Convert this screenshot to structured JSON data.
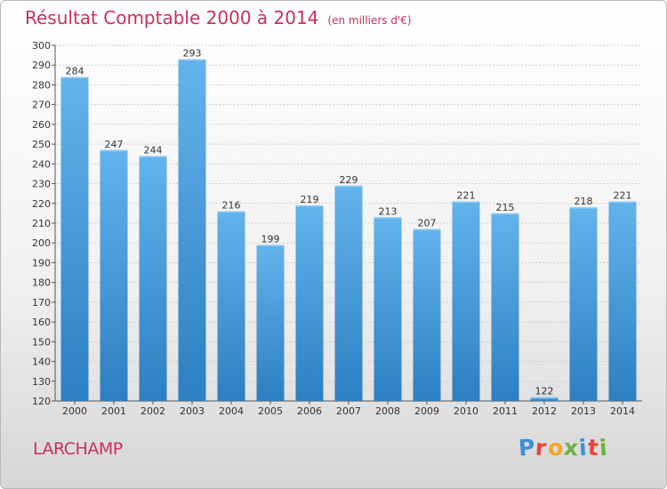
{
  "header": {
    "title": "Résultat Comptable 2000 à 2014",
    "subtitle": "(en milliers d'€)"
  },
  "footer": {
    "commune": "LARCHAMP",
    "logo_text": "Proxiti"
  },
  "colors": {
    "title": "#c7305a",
    "bar_top": "#63b3ec",
    "bar_bottom": "#2c7fc1",
    "grid": "#d0d0d0"
  },
  "chart_data": {
    "type": "bar",
    "title": "Résultat Comptable 2000 à 2014",
    "subtitle": "(en milliers d'€)",
    "categories": [
      "2000",
      "2001",
      "2002",
      "2003",
      "2004",
      "2005",
      "2006",
      "2007",
      "2008",
      "2009",
      "2010",
      "2011",
      "2012",
      "2013",
      "2014"
    ],
    "values": [
      284,
      247,
      244,
      293,
      216,
      199,
      219,
      229,
      213,
      207,
      221,
      215,
      122,
      218,
      221
    ],
    "ylim": [
      120,
      300
    ],
    "yticks": [
      120,
      130,
      140,
      150,
      160,
      170,
      180,
      190,
      200,
      210,
      220,
      230,
      240,
      250,
      260,
      270,
      280,
      290,
      300
    ],
    "grid": true,
    "xlabel": "",
    "ylabel": ""
  }
}
